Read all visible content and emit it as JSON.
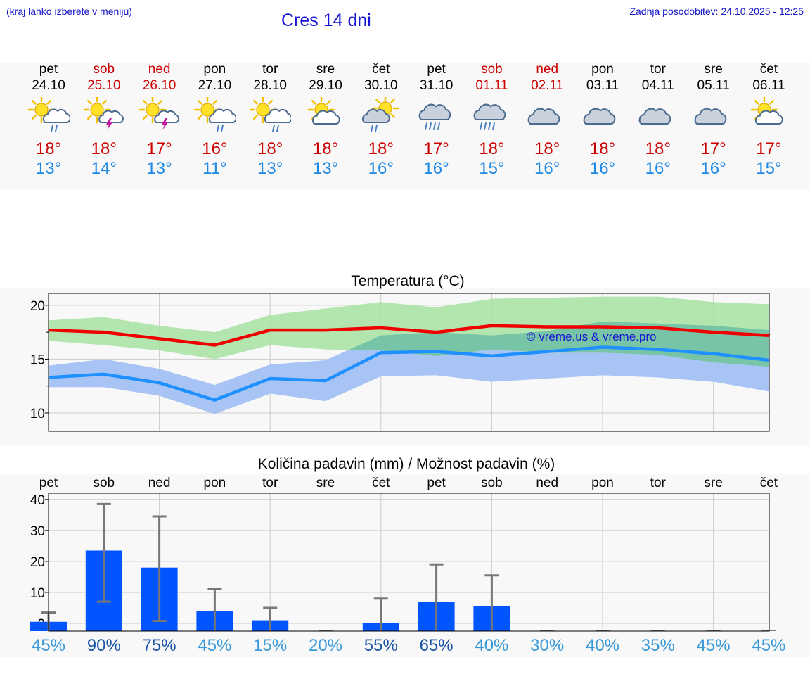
{
  "header": {
    "hint": "(kraj lahko izberete v meniju)",
    "title": "Cres 14 dni",
    "updated": "Zadnja posodobitev: 24.10.2025 - 12:25"
  },
  "days": [
    {
      "name": "pet",
      "date": "24.10",
      "weekend": false,
      "icon": "sun-cloud-rain-icon",
      "max": "18°",
      "min": "13°"
    },
    {
      "name": "sob",
      "date": "25.10",
      "weekend": true,
      "icon": "sun-cloud-thunder-icon",
      "max": "18°",
      "min": "14°"
    },
    {
      "name": "ned",
      "date": "26.10",
      "weekend": true,
      "icon": "sun-cloud-thunder-icon",
      "max": "17°",
      "min": "13°"
    },
    {
      "name": "pon",
      "date": "27.10",
      "weekend": false,
      "icon": "sun-cloud-rain-icon",
      "max": "16°",
      "min": "11°"
    },
    {
      "name": "tor",
      "date": "28.10",
      "weekend": false,
      "icon": "sun-cloud-rain-icon",
      "max": "18°",
      "min": "13°"
    },
    {
      "name": "sre",
      "date": "29.10",
      "weekend": false,
      "icon": "sun-cloud-icon",
      "max": "18°",
      "min": "13°"
    },
    {
      "name": "čet",
      "date": "30.10",
      "weekend": false,
      "icon": "cloud-sun-rain-icon",
      "max": "18°",
      "min": "16°"
    },
    {
      "name": "pet",
      "date": "31.10",
      "weekend": false,
      "icon": "cloud-rain-icon",
      "max": "17°",
      "min": "16°"
    },
    {
      "name": "sob",
      "date": "01.11",
      "weekend": true,
      "icon": "cloud-rain-icon",
      "max": "18°",
      "min": "15°"
    },
    {
      "name": "ned",
      "date": "02.11",
      "weekend": true,
      "icon": "cloud-icon",
      "max": "18°",
      "min": "16°"
    },
    {
      "name": "pon",
      "date": "03.11",
      "weekend": false,
      "icon": "cloud-icon",
      "max": "18°",
      "min": "16°"
    },
    {
      "name": "tor",
      "date": "04.11",
      "weekend": false,
      "icon": "cloud-icon",
      "max": "18°",
      "min": "16°"
    },
    {
      "name": "sre",
      "date": "05.11",
      "weekend": false,
      "icon": "cloud-icon",
      "max": "17°",
      "min": "16°"
    },
    {
      "name": "čet",
      "date": "06.11",
      "weekend": false,
      "icon": "sun-cloud-icon",
      "max": "17°",
      "min": "15°"
    }
  ],
  "chart_data": [
    {
      "type": "line",
      "title": "Temperatura (°C)",
      "watermark": "© vreme.us & vreme.pro",
      "ylim": [
        8.3,
        21.1
      ],
      "yticks": [
        10,
        15,
        20
      ],
      "grid": true,
      "colors": {
        "max": "#ee0000",
        "min": "#1e90ff",
        "max_band": "#a6e3a1",
        "min_band": "#a8c4f4",
        "overlap": "#77c4a6"
      },
      "series": [
        {
          "values": [
            17.7,
            17.5,
            16.9,
            16.3,
            17.7,
            17.7,
            17.9,
            17.5,
            18.1,
            18.0,
            18.0,
            17.9,
            17.5,
            17.2
          ]
        },
        {
          "values": [
            13.3,
            13.6,
            12.8,
            11.2,
            13.2,
            13.0,
            15.6,
            15.7,
            15.3,
            15.7,
            16.1,
            15.9,
            15.5,
            14.9
          ]
        }
      ],
      "bands": [
        {
          "upper": [
            18.6,
            18.9,
            18.1,
            17.5,
            19.1,
            19.7,
            20.3,
            19.8,
            20.6,
            20.7,
            20.8,
            20.8,
            20.3,
            20.1
          ],
          "lower": [
            16.7,
            16.3,
            15.8,
            15.0,
            16.3,
            15.9,
            15.8,
            15.3,
            15.9,
            15.6,
            15.6,
            15.4,
            14.7,
            14.3
          ]
        },
        {
          "upper": [
            14.4,
            15.0,
            14.1,
            12.6,
            14.5,
            14.9,
            17.2,
            17.5,
            17.2,
            17.6,
            18.5,
            18.3,
            18.1,
            17.7
          ],
          "lower": [
            12.4,
            12.4,
            11.6,
            9.9,
            11.8,
            11.1,
            13.4,
            13.5,
            12.9,
            13.2,
            13.5,
            13.3,
            12.9,
            12.0
          ]
        }
      ]
    },
    {
      "type": "bar",
      "title": "Količina padavin (mm) / Možnost padavin (%)",
      "categories": [
        "pet",
        "sob",
        "ned",
        "pon",
        "tor",
        "sre",
        "čet",
        "pet",
        "sob",
        "ned",
        "pon",
        "tor",
        "sre",
        "čet"
      ],
      "ylim": [
        -2.5,
        42
      ],
      "yticks": [
        0,
        10,
        20,
        30,
        40
      ],
      "grid": true,
      "colors": {
        "bar": "#0055ff",
        "error": "#777777"
      },
      "values": [
        0.5,
        23.5,
        18.0,
        4.0,
        1.0,
        0,
        0.2,
        7.0,
        5.6,
        0,
        0,
        0,
        0,
        0
      ],
      "error_high": [
        3.5,
        38.5,
        34.5,
        11.0,
        5.0,
        0,
        8.0,
        19.0,
        15.5,
        0,
        0,
        0,
        0,
        0
      ],
      "error_low": [
        0,
        7.0,
        0.8,
        0,
        0,
        0,
        0,
        0,
        0,
        0,
        0,
        0,
        0,
        0
      ],
      "probability": [
        "45%",
        "90%",
        "75%",
        "45%",
        "15%",
        "20%",
        "55%",
        "65%",
        "40%",
        "30%",
        "40%",
        "35%",
        "45%",
        "45%"
      ],
      "probability_colors": [
        "#3a9ad9",
        "#1a56a8",
        "#1a56a8",
        "#3a9ad9",
        "#3a9ad9",
        "#3a9ad9",
        "#1a56a8",
        "#1a56a8",
        "#3a9ad9",
        "#3a9ad9",
        "#3a9ad9",
        "#3a9ad9",
        "#3a9ad9",
        "#3a9ad9"
      ]
    }
  ]
}
